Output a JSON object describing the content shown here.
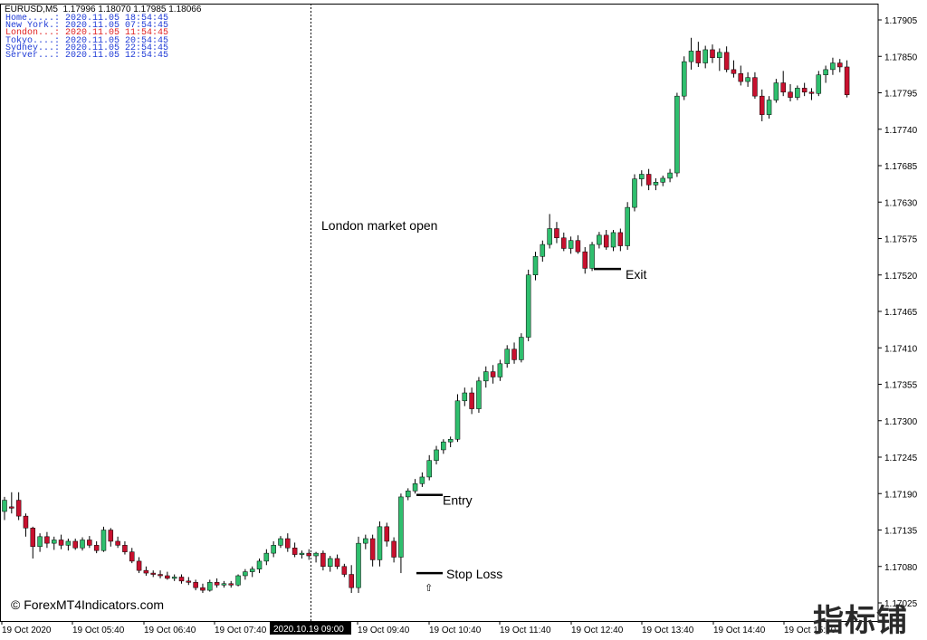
{
  "header": {
    "symbol_line": "EURUSD,M5  1.17996 1.18070 1.17985 1.18066"
  },
  "clock_panel": [
    {
      "label": "Home.....: ",
      "time": "2020.11.05 18:54:45",
      "color": "#1f3bd6"
    },
    {
      "label": "New York.: ",
      "time": "2020.11.05 07:54:45",
      "color": "#1f3bd6"
    },
    {
      "label": "London...: ",
      "time": "2020.11.05 11:54:45",
      "color": "#e02020"
    },
    {
      "label": "Tokyo....: ",
      "time": "2020.11.05 20:54:45",
      "color": "#1f3bd6"
    },
    {
      "label": "Sydney...: ",
      "time": "2020.11.05 22:54:45",
      "color": "#1f3bd6"
    },
    {
      "label": "Server...: ",
      "time": "2020.11.05 12:54:45",
      "color": "#1f3bd6"
    }
  ],
  "annotations": {
    "london_open": "London market open",
    "entry": "Entry",
    "exit": "Exit",
    "stop_loss": "Stop Loss",
    "arrow": "⇧"
  },
  "watermark": "© ForexMT4Indicators.com",
  "corner_stamp": "指标铺",
  "colors": {
    "bull": "#2fbf6e",
    "bear": "#c8102e",
    "doji": "#7de07d",
    "wick": "#000000",
    "axis": "#000000",
    "crosshair_label_bg": "#000000",
    "crosshair_label_text": "#ffffff"
  },
  "chart_data": {
    "type": "candlestick",
    "symbol": "EURUSD",
    "timeframe": "M5",
    "ylim": [
      1.17025,
      1.17935
    ],
    "y_ticks": [
      "1.17905",
      "1.17850",
      "1.17795",
      "1.17740",
      "1.17685",
      "1.17630",
      "1.17575",
      "1.17520",
      "1.17465",
      "1.17410",
      "1.17355",
      "1.17300",
      "1.17245",
      "1.17190",
      "1.17135",
      "1.17080",
      "1.17025"
    ],
    "x_ticks": [
      "19 Oct 2020",
      "19 Oct 05:40",
      "19 Oct 06:40",
      "19 Oct 07:40",
      "19 Oct 09:40",
      "19 Oct 10:40",
      "19 Oct 11:40",
      "19 Oct 12:40",
      "19 Oct 13:40",
      "19 Oct 14:40",
      "19 Oct 15:40"
    ],
    "crosshair_time_label": "2020.10.19 09:00",
    "entry_level": 1.17188,
    "exit_level": 1.17529,
    "stop_loss_level": 1.1707,
    "candles": [
      [
        1.17163,
        1.17185,
        1.1715,
        1.1718
      ],
      [
        1.1717,
        1.17192,
        1.1716,
        1.17168
      ],
      [
        1.1718,
        1.17192,
        1.1715,
        1.17156
      ],
      [
        1.17156,
        1.1716,
        1.17125,
        1.17138
      ],
      [
        1.17138,
        1.1714,
        1.17092,
        1.1711
      ],
      [
        1.1711,
        1.1713,
        1.17102,
        1.17125
      ],
      [
        1.17125,
        1.17132,
        1.17108,
        1.17115
      ],
      [
        1.17115,
        1.17125,
        1.17105,
        1.1712
      ],
      [
        1.1712,
        1.17128,
        1.17106,
        1.17112
      ],
      [
        1.17112,
        1.17122,
        1.17104,
        1.17118
      ],
      [
        1.17118,
        1.17122,
        1.17105,
        1.17108
      ],
      [
        1.17108,
        1.17124,
        1.17104,
        1.1712
      ],
      [
        1.1712,
        1.17126,
        1.17108,
        1.17112
      ],
      [
        1.17112,
        1.17118,
        1.171,
        1.17104
      ],
      [
        1.17104,
        1.1714,
        1.17102,
        1.17135
      ],
      [
        1.17135,
        1.17138,
        1.1711,
        1.17118
      ],
      [
        1.17118,
        1.17125,
        1.17108,
        1.17112
      ],
      [
        1.17112,
        1.17118,
        1.17098,
        1.17102
      ],
      [
        1.17102,
        1.17108,
        1.17085,
        1.17088
      ],
      [
        1.17088,
        1.17094,
        1.1707,
        1.17074
      ],
      [
        1.17074,
        1.1708,
        1.17066,
        1.1707
      ],
      [
        1.1707,
        1.17074,
        1.17064,
        1.17068
      ],
      [
        1.17068,
        1.17074,
        1.17062,
        1.17066
      ],
      [
        1.17066,
        1.17072,
        1.1706,
        1.17062
      ],
      [
        1.17062,
        1.17068,
        1.17058,
        1.17064
      ],
      [
        1.17064,
        1.17068,
        1.17054,
        1.17058
      ],
      [
        1.17058,
        1.17064,
        1.17052,
        1.17056
      ],
      [
        1.17056,
        1.1706,
        1.17044,
        1.17048
      ],
      [
        1.17048,
        1.17054,
        1.1704,
        1.17044
      ],
      [
        1.17044,
        1.1706,
        1.17042,
        1.17056
      ],
      [
        1.17056,
        1.17062,
        1.17048,
        1.17052
      ],
      [
        1.17052,
        1.17058,
        1.17048,
        1.17054
      ],
      [
        1.17054,
        1.17058,
        1.17048,
        1.17052
      ],
      [
        1.17052,
        1.17068,
        1.1705,
        1.17066
      ],
      [
        1.17066,
        1.17076,
        1.1706,
        1.17072
      ],
      [
        1.17072,
        1.1708,
        1.17064,
        1.17076
      ],
      [
        1.17076,
        1.17092,
        1.1707,
        1.17088
      ],
      [
        1.17088,
        1.17106,
        1.17082,
        1.171
      ],
      [
        1.171,
        1.17118,
        1.17094,
        1.17112
      ],
      [
        1.17112,
        1.17126,
        1.17108,
        1.17122
      ],
      [
        1.17122,
        1.1713,
        1.17102,
        1.17108
      ],
      [
        1.17108,
        1.17116,
        1.17094,
        1.17098
      ],
      [
        1.17098,
        1.17104,
        1.17092,
        1.171
      ],
      [
        1.171,
        1.17106,
        1.1709,
        1.17096
      ],
      [
        1.17096,
        1.17102,
        1.17086,
        1.171
      ],
      [
        1.171,
        1.17104,
        1.17074,
        1.1708
      ],
      [
        1.1708,
        1.17096,
        1.17072,
        1.17092
      ],
      [
        1.17092,
        1.17098,
        1.17076,
        1.1708
      ],
      [
        1.1708,
        1.17084,
        1.17064,
        1.17068
      ],
      [
        1.17068,
        1.17082,
        1.1704,
        1.17048
      ],
      [
        1.17048,
        1.17125,
        1.1704,
        1.17115
      ],
      [
        1.17115,
        1.17128,
        1.17106,
        1.17122
      ],
      [
        1.17122,
        1.17128,
        1.1708,
        1.1709
      ],
      [
        1.1709,
        1.17148,
        1.1708,
        1.1714
      ],
      [
        1.1714,
        1.17146,
        1.1711,
        1.17118
      ],
      [
        1.17118,
        1.17124,
        1.17086,
        1.17094
      ],
      [
        1.17094,
        1.1719,
        1.1707,
        1.17185
      ],
      [
        1.17185,
        1.17198,
        1.1718,
        1.17194
      ],
      [
        1.17194,
        1.17212,
        1.1719,
        1.17205
      ],
      [
        1.17205,
        1.17222,
        1.172,
        1.17215
      ],
      [
        1.17215,
        1.17248,
        1.1721,
        1.1724
      ],
      [
        1.1724,
        1.17262,
        1.17234,
        1.17256
      ],
      [
        1.17256,
        1.17272,
        1.1725,
        1.17268
      ],
      [
        1.17268,
        1.17276,
        1.1726,
        1.17272
      ],
      [
        1.17272,
        1.1734,
        1.17268,
        1.1733
      ],
      [
        1.1733,
        1.1735,
        1.17322,
        1.17342
      ],
      [
        1.17342,
        1.1735,
        1.1731,
        1.17318
      ],
      [
        1.17318,
        1.17366,
        1.17312,
        1.1736
      ],
      [
        1.1736,
        1.17382,
        1.1735,
        1.17374
      ],
      [
        1.17374,
        1.17384,
        1.17356,
        1.17366
      ],
      [
        1.17366,
        1.17392,
        1.1736,
        1.17386
      ],
      [
        1.17386,
        1.17414,
        1.1738,
        1.17408
      ],
      [
        1.17408,
        1.17418,
        1.17386,
        1.17392
      ],
      [
        1.17392,
        1.17432,
        1.17388,
        1.17426
      ],
      [
        1.17426,
        1.17528,
        1.1742,
        1.1752
      ],
      [
        1.1752,
        1.17555,
        1.17512,
        1.17548
      ],
      [
        1.17548,
        1.17572,
        1.1754,
        1.17566
      ],
      [
        1.17566,
        1.17612,
        1.1756,
        1.1759
      ],
      [
        1.1759,
        1.176,
        1.17568,
        1.17576
      ],
      [
        1.17576,
        1.17584,
        1.17556,
        1.1756
      ],
      [
        1.1756,
        1.17578,
        1.17552,
        1.17572
      ],
      [
        1.17572,
        1.1758,
        1.17552,
        1.17555
      ],
      [
        1.17555,
        1.17562,
        1.17522,
        1.1753
      ],
      [
        1.1753,
        1.1757,
        1.17526,
        1.17566
      ],
      [
        1.17566,
        1.17585,
        1.1756,
        1.1758
      ],
      [
        1.1758,
        1.17588,
        1.17558,
        1.17562
      ],
      [
        1.17562,
        1.17588,
        1.17556,
        1.17584
      ],
      [
        1.17584,
        1.1759,
        1.17556,
        1.17564
      ],
      [
        1.17564,
        1.1763,
        1.17558,
        1.17622
      ],
      [
        1.17622,
        1.17672,
        1.17616,
        1.17665
      ],
      [
        1.17665,
        1.17678,
        1.17654,
        1.17672
      ],
      [
        1.17672,
        1.1768,
        1.17648,
        1.17656
      ],
      [
        1.17656,
        1.17666,
        1.17648,
        1.1766
      ],
      [
        1.1766,
        1.1767,
        1.17654,
        1.17666
      ],
      [
        1.17666,
        1.1768,
        1.1766,
        1.17674
      ],
      [
        1.17674,
        1.17795,
        1.17668,
        1.1779
      ],
      [
        1.1779,
        1.1785,
        1.17784,
        1.17842
      ],
      [
        1.17842,
        1.17878,
        1.1783,
        1.17858
      ],
      [
        1.17858,
        1.17872,
        1.17834,
        1.1784
      ],
      [
        1.1784,
        1.17866,
        1.17832,
        1.1786
      ],
      [
        1.1786,
        1.17868,
        1.1784,
        1.17848
      ],
      [
        1.17848,
        1.17862,
        1.17828,
        1.17856
      ],
      [
        1.17856,
        1.17865,
        1.17826,
        1.1783
      ],
      [
        1.1783,
        1.17844,
        1.17818,
        1.17824
      ],
      [
        1.17824,
        1.17836,
        1.17806,
        1.17812
      ],
      [
        1.17812,
        1.17826,
        1.17804,
        1.17818
      ],
      [
        1.17818,
        1.17826,
        1.17786,
        1.1779
      ],
      [
        1.1779,
        1.178,
        1.17752,
        1.17762
      ],
      [
        1.17762,
        1.1779,
        1.17756,
        1.17784
      ],
      [
        1.17784,
        1.17816,
        1.1778,
        1.1781
      ],
      [
        1.1781,
        1.17828,
        1.1779,
        1.17796
      ],
      [
        1.17796,
        1.17808,
        1.17782,
        1.17788
      ],
      [
        1.17788,
        1.17806,
        1.17784,
        1.17802
      ],
      [
        1.17802,
        1.1781,
        1.1779,
        1.17796
      ],
      [
        1.17796,
        1.17802,
        1.17784,
        1.17794
      ],
      [
        1.17794,
        1.17828,
        1.1779,
        1.17822
      ],
      [
        1.17822,
        1.17836,
        1.1781,
        1.1783
      ],
      [
        1.1783,
        1.17848,
        1.17822,
        1.1784
      ],
      [
        1.1784,
        1.17846,
        1.17826,
        1.17834
      ],
      [
        1.17834,
        1.17844,
        1.17788,
        1.17792
      ]
    ]
  }
}
